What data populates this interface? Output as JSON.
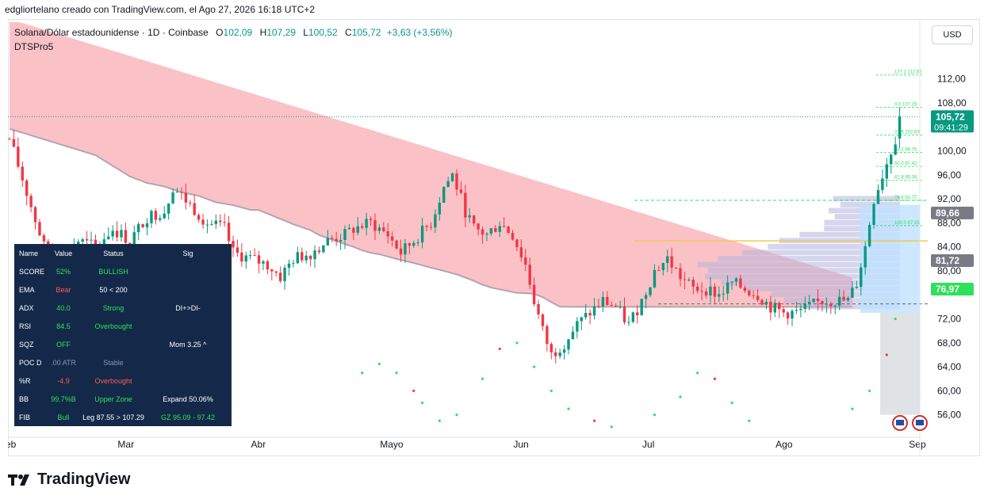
{
  "caption": "edgliortelano creado con TradingView.com, el Ago 27, 2026 16:18 UTC+2",
  "header": {
    "symbol": "Solana/Dólar estadounidense · 1D · Coinbase",
    "open_label": "O",
    "open": "102,09",
    "high_label": "H",
    "high": "107,29",
    "low_label": "L",
    "low": "100,52",
    "close_label": "C",
    "close": "105,72",
    "change": "+3,63 (+3,56%)"
  },
  "indicator_name": "DTSPro5",
  "currency_button": "USD",
  "colors": {
    "up": "#089981",
    "down": "#f23645",
    "band": "#f7a1a7",
    "profile": "#b2b5e0",
    "table_bg": "#14294a"
  },
  "table": {
    "headers": [
      "Name",
      "Value",
      "Status",
      "Sig"
    ],
    "rows": [
      {
        "name": "SCORE",
        "value": "52%",
        "status": "BULLISH",
        "sig": "",
        "vc": "c-green",
        "sc": "c-green",
        "gc": "c-white"
      },
      {
        "name": "EMA",
        "value": "Bear",
        "status": "50 < 200",
        "sig": "",
        "vc": "c-red",
        "sc": "c-white",
        "gc": "c-white"
      },
      {
        "name": "ADX",
        "value": "40.0",
        "status": "Strong",
        "sig": "DI+>DI-",
        "vc": "c-green",
        "sc": "c-green",
        "gc": "c-white"
      },
      {
        "name": "RSI",
        "value": "84.5",
        "status": "Overbought",
        "sig": "",
        "vc": "c-green",
        "sc": "c-green",
        "gc": "c-white"
      },
      {
        "name": "SQZ",
        "value": "OFF",
        "status": "",
        "sig": "Mom 3.25 ^",
        "vc": "c-green",
        "sc": "c-white",
        "gc": "c-white"
      },
      {
        "name": "POC D",
        "value": ".00 ATR",
        "status": "Stable",
        "sig": "",
        "vc": "c-gray",
        "sc": "c-gray",
        "gc": "c-white"
      },
      {
        "name": "%R",
        "value": "-4.9",
        "status": "Overbought",
        "sig": "",
        "vc": "c-red",
        "sc": "c-red",
        "gc": "c-white"
      },
      {
        "name": "BB",
        "value": "99.7%B",
        "status": "Upper Zone",
        "sig": "Expand 50.06%",
        "vc": "c-green",
        "sc": "c-green",
        "gc": "c-white"
      },
      {
        "name": "FIB",
        "value": "Bull",
        "status": "Leg 87.55 > 107.29",
        "sig": "GZ 95.09 - 97.42",
        "vc": "c-green",
        "sc": "c-white",
        "gc": "c-green"
      }
    ]
  },
  "chart_data": {
    "type": "candlestick",
    "y_range": [
      52,
      122
    ],
    "y_ticks": [
      56,
      60,
      64,
      68,
      72,
      76,
      80,
      84,
      88,
      92,
      96,
      100,
      104,
      108,
      112
    ],
    "y_tick_labels": [
      "56,00",
      "60,00",
      "64,00",
      "68,00",
      "72,00",
      "",
      "80,00",
      "84,00",
      "88,00",
      "92,00",
      "96,00",
      "100,00",
      "",
      "108,00",
      "112,00"
    ],
    "x_range_days": [
      0,
      208
    ],
    "x_ticks": [
      {
        "label": "Mar",
        "day": 27
      },
      {
        "label": "Abr",
        "day": 58
      },
      {
        "label": "Mayo",
        "day": 88
      },
      {
        "label": "Jun",
        "day": 119
      },
      {
        "label": "Jul",
        "day": 149
      },
      {
        "label": "Ago",
        "day": 180
      },
      {
        "label": "Sep",
        "day": 211
      }
    ],
    "x_edge_label": "eb",
    "last_price": {
      "value": 105.72,
      "label": "105,72",
      "countdown": "09:41:29"
    },
    "price_badges": [
      {
        "value": 89.66,
        "label": "89,66",
        "color": "#787b86"
      },
      {
        "value": 81.72,
        "label": "81,72",
        "color": "#787b86"
      },
      {
        "value": 76.97,
        "label": "76,97",
        "color": "#2ee05a"
      }
    ],
    "fib_levels": [
      {
        "label": "127.2 112.66",
        "value": 112.66
      },
      {
        "label": "0.0 107.29",
        "value": 107.29
      },
      {
        "label": "23.6 102.63",
        "value": 102.63
      },
      {
        "label": "38.2 99.75",
        "value": 99.75
      },
      {
        "label": "50.0 97.42",
        "value": 97.42
      },
      {
        "label": "61.8 95.09",
        "value": 95.09
      },
      {
        "label": "78.6 91.77",
        "value": 91.77
      },
      {
        "label": "100.0 87.55",
        "value": 87.55
      }
    ],
    "close_anchors": [
      [
        0,
        102
      ],
      [
        4,
        93
      ],
      [
        8,
        84
      ],
      [
        12,
        82
      ],
      [
        16,
        85
      ],
      [
        20,
        84
      ],
      [
        24,
        87
      ],
      [
        28,
        85
      ],
      [
        32,
        89
      ],
      [
        36,
        90
      ],
      [
        38,
        94
      ],
      [
        42,
        91
      ],
      [
        46,
        88
      ],
      [
        50,
        87
      ],
      [
        52,
        83
      ],
      [
        56,
        82
      ],
      [
        60,
        81
      ],
      [
        63,
        79
      ],
      [
        66,
        82
      ],
      [
        70,
        83
      ],
      [
        74,
        85
      ],
      [
        78,
        86
      ],
      [
        80,
        87
      ],
      [
        84,
        88
      ],
      [
        88,
        86
      ],
      [
        91,
        83
      ],
      [
        94,
        85
      ],
      [
        98,
        88
      ],
      [
        101,
        94
      ],
      [
        103,
        96
      ],
      [
        106,
        90
      ],
      [
        108,
        87
      ],
      [
        111,
        86
      ],
      [
        114,
        88
      ],
      [
        117,
        86
      ],
      [
        120,
        81
      ],
      [
        122,
        75
      ],
      [
        124,
        70
      ],
      [
        126,
        66
      ],
      [
        129,
        68
      ],
      [
        132,
        71
      ],
      [
        135,
        73
      ],
      [
        138,
        75
      ],
      [
        141,
        74
      ],
      [
        144,
        71
      ],
      [
        147,
        75
      ],
      [
        150,
        80
      ],
      [
        153,
        82
      ],
      [
        156,
        79
      ],
      [
        159,
        77
      ],
      [
        162,
        77
      ],
      [
        165,
        76
      ],
      [
        168,
        78
      ],
      [
        171,
        77
      ],
      [
        174,
        76
      ],
      [
        177,
        74
      ],
      [
        180,
        73
      ],
      [
        183,
        73
      ],
      [
        186,
        74
      ],
      [
        189,
        75
      ],
      [
        192,
        75
      ],
      [
        195,
        75
      ],
      [
        197,
        78
      ],
      [
        199,
        84
      ],
      [
        201,
        92
      ],
      [
        203,
        96
      ],
      [
        205,
        100
      ],
      [
        206,
        102
      ],
      [
        207,
        105.72
      ]
    ]
  }
}
